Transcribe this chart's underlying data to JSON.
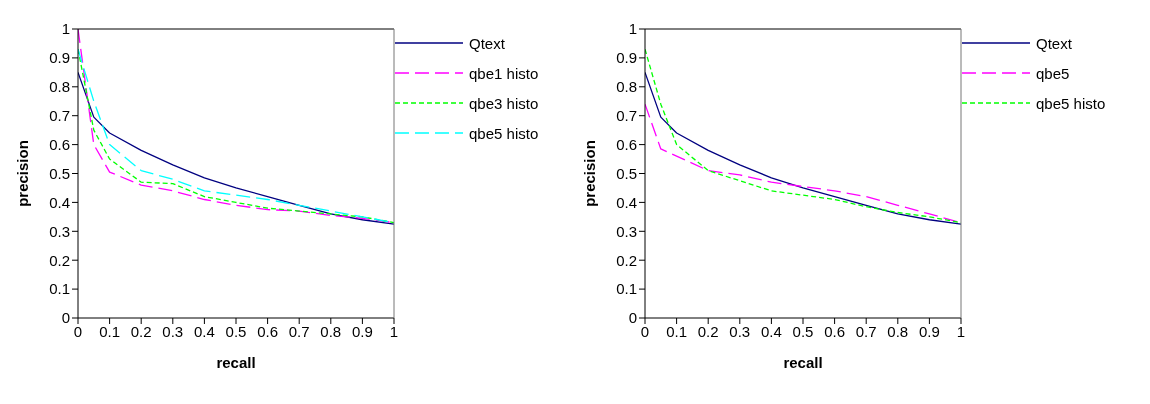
{
  "chart_data": [
    {
      "type": "line",
      "xlabel": "recall",
      "ylabel": "precision",
      "x": [
        0,
        0.05,
        0.1,
        0.2,
        0.3,
        0.4,
        0.5,
        0.6,
        0.7,
        0.8,
        0.9,
        1
      ],
      "xlim": [
        0,
        1
      ],
      "xticks": [
        0,
        0.1,
        0.2,
        0.3,
        0.4,
        0.5,
        0.6,
        0.7,
        0.8,
        0.9,
        1
      ],
      "ylim": [
        0,
        1
      ],
      "yticks": [
        0,
        0.1,
        0.2,
        0.3,
        0.4,
        0.5,
        0.6,
        0.7,
        0.8,
        0.9,
        1
      ],
      "grid": false,
      "legend": "top right",
      "marker": "none",
      "series": [
        {
          "name": "Qtext",
          "color": "#000080",
          "line_style": "solid",
          "values": [
            0.85,
            0.695,
            0.64,
            0.58,
            0.53,
            0.485,
            0.45,
            0.42,
            0.39,
            0.36,
            0.34,
            0.325
          ]
        },
        {
          "name": "qbe1 histo",
          "color": "#ff00ff",
          "line_style": "dashed",
          "values": [
            1.0,
            0.6,
            0.505,
            0.46,
            0.44,
            0.41,
            0.39,
            0.375,
            0.37,
            0.355,
            0.345,
            0.33
          ]
        },
        {
          "name": "qbe3 histo",
          "color": "#00ff00",
          "line_style": "dashed",
          "values": [
            0.93,
            0.65,
            0.55,
            0.47,
            0.465,
            0.42,
            0.4,
            0.38,
            0.37,
            0.36,
            0.35,
            0.33
          ]
        },
        {
          "name": "qbe5 histo",
          "color": "#00ffff",
          "line_style": "dashed",
          "values": [
            0.93,
            0.75,
            0.6,
            0.51,
            0.48,
            0.44,
            0.425,
            0.41,
            0.39,
            0.37,
            0.35,
            0.33
          ]
        }
      ]
    },
    {
      "type": "line",
      "xlabel": "recall",
      "ylabel": "precision",
      "x": [
        0,
        0.05,
        0.1,
        0.2,
        0.3,
        0.4,
        0.5,
        0.6,
        0.7,
        0.8,
        0.9,
        1
      ],
      "xlim": [
        0,
        1
      ],
      "xticks": [
        0,
        0.1,
        0.2,
        0.3,
        0.4,
        0.5,
        0.6,
        0.7,
        0.8,
        0.9,
        1
      ],
      "ylim": [
        0,
        1
      ],
      "yticks": [
        0,
        0.1,
        0.2,
        0.3,
        0.4,
        0.5,
        0.6,
        0.7,
        0.8,
        0.9,
        1
      ],
      "grid": false,
      "legend": "top right",
      "marker": "none",
      "series": [
        {
          "name": "Qtext",
          "color": "#000080",
          "line_style": "solid",
          "values": [
            0.85,
            0.695,
            0.64,
            0.58,
            0.53,
            0.485,
            0.45,
            0.42,
            0.39,
            0.36,
            0.34,
            0.325
          ]
        },
        {
          "name": "qbe5",
          "color": "#ff00ff",
          "line_style": "dashed",
          "values": [
            0.74,
            0.585,
            0.56,
            0.51,
            0.495,
            0.47,
            0.455,
            0.44,
            0.42,
            0.39,
            0.36,
            0.33
          ]
        },
        {
          "name": "qbe5 histo",
          "color": "#00ff00",
          "line_style": "dashed",
          "values": [
            0.93,
            0.74,
            0.6,
            0.51,
            0.475,
            0.44,
            0.425,
            0.41,
            0.385,
            0.365,
            0.35,
            0.33
          ]
        }
      ]
    }
  ]
}
